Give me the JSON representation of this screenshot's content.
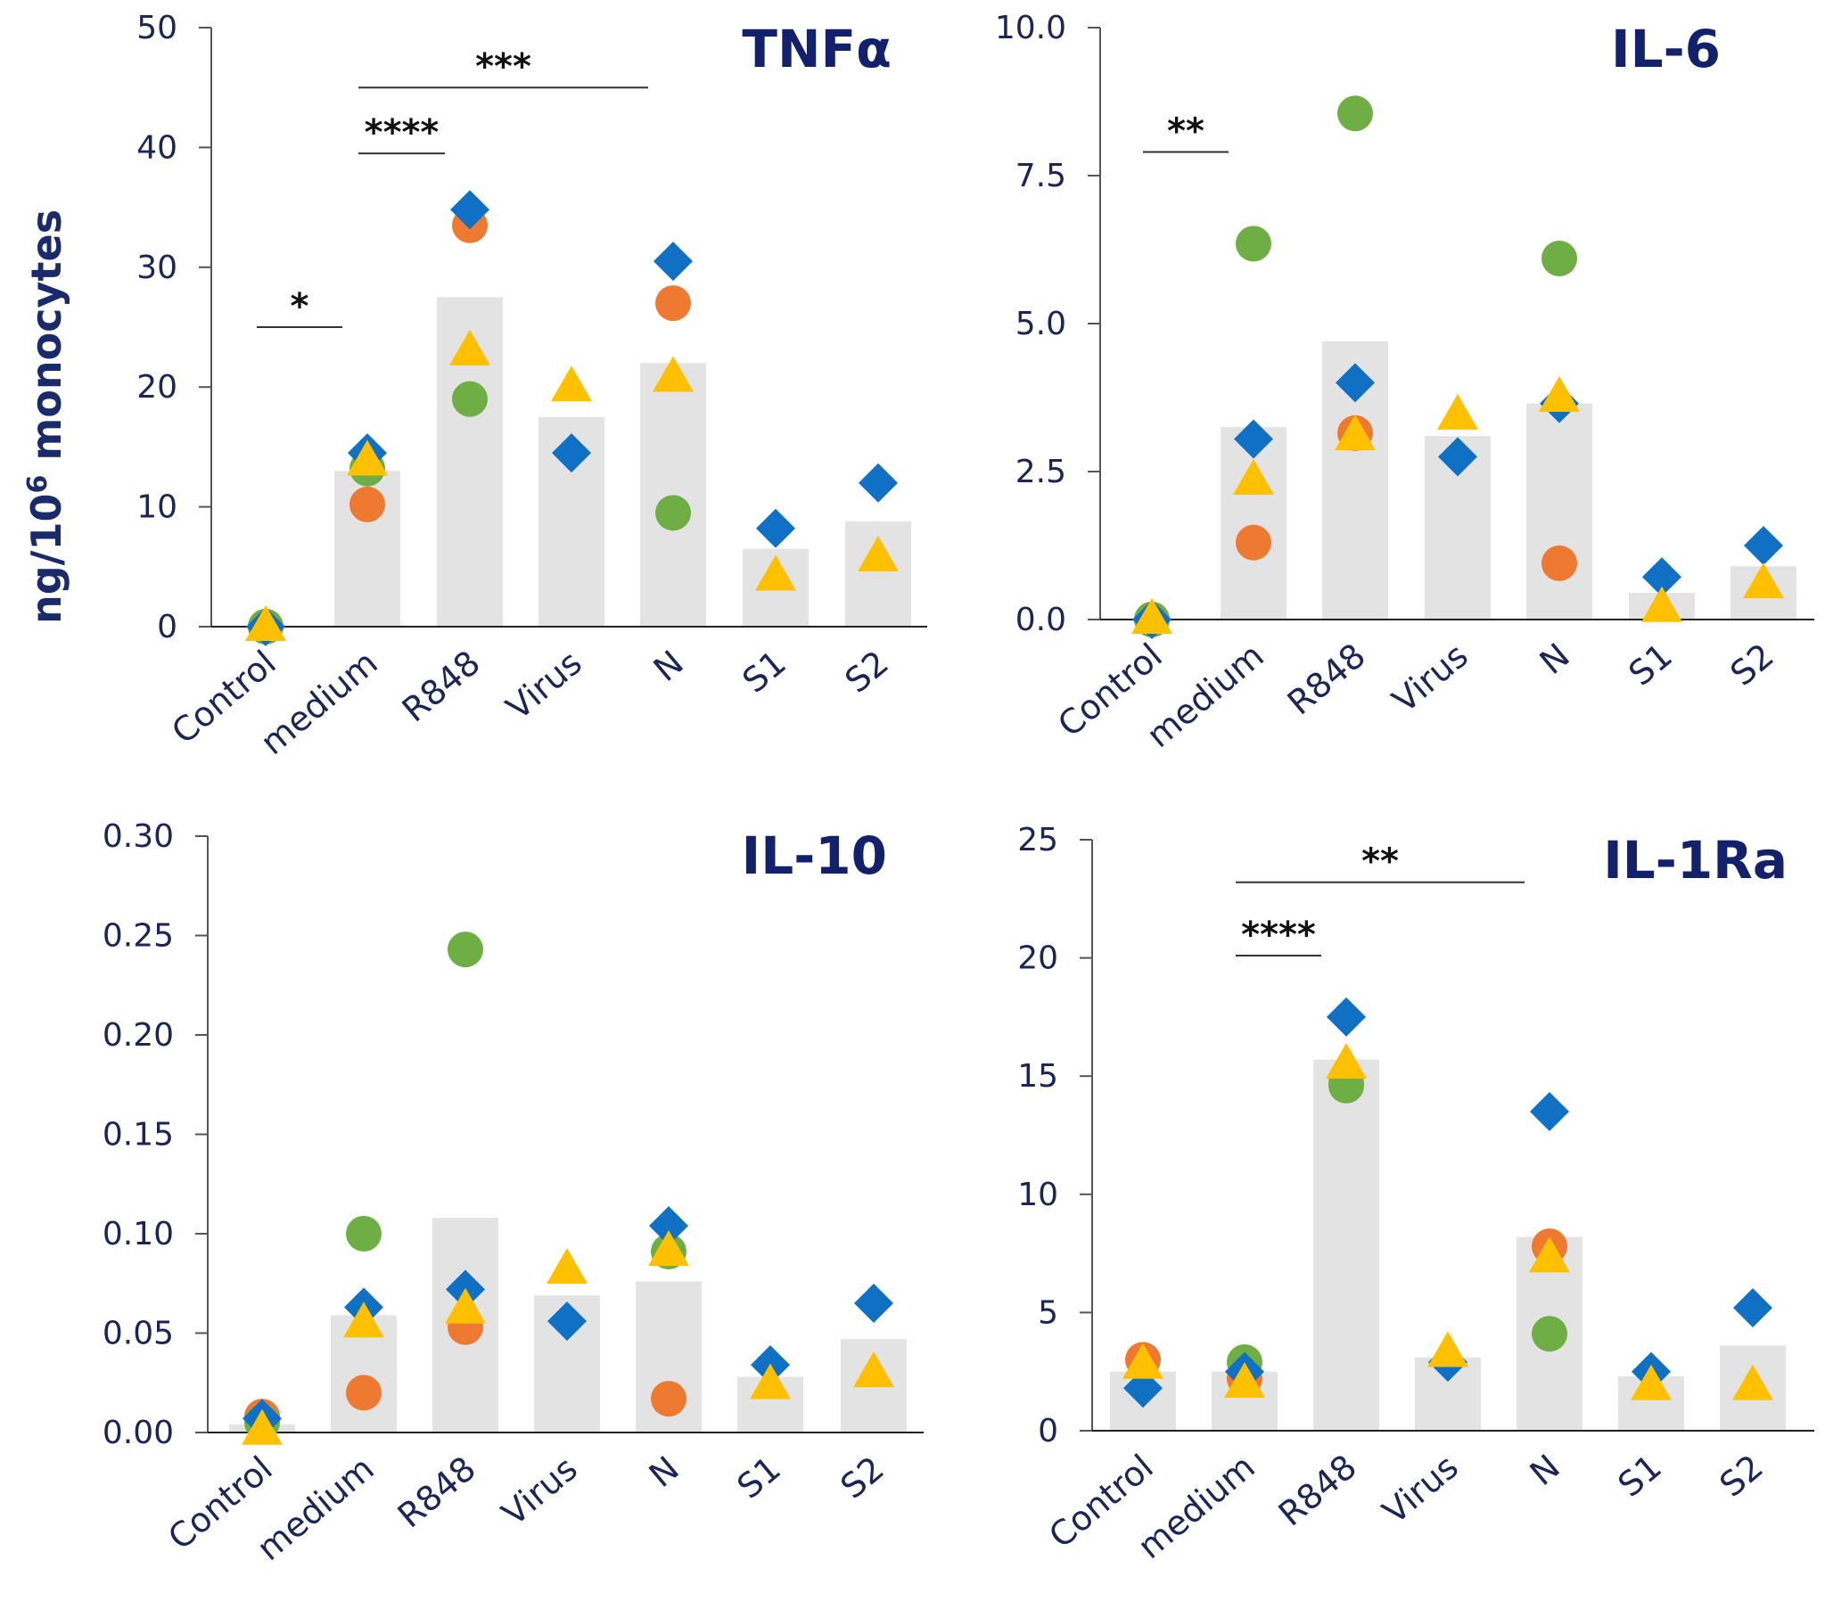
{
  "y_axis_label": "ng/10",
  "y_axis_label_sup": "6",
  "y_axis_label_suffix": " monocytes",
  "colors": {
    "bar": "#e3e3e3",
    "axis": "#555555",
    "text": "#1b2556",
    "title": "#13206b",
    "diamond": "#1070c4",
    "circle_orange": "#ee7a31",
    "circle_green": "#6fad45",
    "triangle": "#ffc000"
  },
  "chart_data": [
    {
      "type": "bar",
      "title": "TNFα",
      "categories": [
        "Control",
        "medium",
        "R848",
        "Virus",
        "N",
        "S1",
        "S2"
      ],
      "values": [
        0,
        13,
        27.5,
        17.5,
        22,
        6.5,
        8.8
      ],
      "ylim": [
        0,
        50
      ],
      "yticks": [
        "0",
        "10",
        "20",
        "30",
        "40",
        "50"
      ],
      "ytick_values": [
        0,
        10,
        20,
        30,
        40,
        50
      ],
      "points": {
        "diamond": [
          0,
          14.5,
          34.8,
          14.5,
          30.5,
          8.2,
          12
        ],
        "orange": [
          0,
          10.2,
          33.5,
          null,
          27,
          null,
          null
        ],
        "green": [
          0,
          13.2,
          19,
          null,
          9.5,
          null,
          null
        ],
        "triangle": [
          0,
          13.8,
          23,
          20,
          20.8,
          4.2,
          5.8
        ]
      },
      "significance": [
        {
          "from": 0,
          "to": 1,
          "level": 25,
          "label": "*"
        },
        {
          "from": 1,
          "to": 2,
          "level": 39.5,
          "label": "****"
        },
        {
          "from": 1,
          "to": 4,
          "level": 45,
          "label": "***"
        }
      ]
    },
    {
      "type": "bar",
      "title": "IL-6",
      "categories": [
        "Control",
        "medium",
        "R848",
        "Virus",
        "N",
        "S1",
        "S2"
      ],
      "values": [
        0,
        3.25,
        4.7,
        3.1,
        3.65,
        0.45,
        0.9
      ],
      "ylim": [
        0,
        10
      ],
      "yticks": [
        "0.0",
        "2.5",
        "5.0",
        "7.5",
        "10.0"
      ],
      "ytick_values": [
        0,
        2.5,
        5,
        7.5,
        10
      ],
      "points": {
        "diamond": [
          0,
          3.05,
          4,
          2.75,
          3.65,
          0.72,
          1.25
        ],
        "orange": [
          0,
          1.3,
          3.15,
          null,
          0.95,
          null,
          null
        ],
        "green": [
          0,
          6.35,
          8.55,
          null,
          6.1,
          null,
          null
        ],
        "triangle": [
          0,
          2.35,
          3.1,
          3.45,
          3.75,
          0.2,
          0.6
        ]
      },
      "significance": [
        {
          "from": 0,
          "to": 1,
          "level": 7.9,
          "label": "**"
        }
      ]
    },
    {
      "type": "bar",
      "title": "IL-10",
      "categories": [
        "Control",
        "medium",
        "R848",
        "Virus",
        "N",
        "S1",
        "S2"
      ],
      "values": [
        0.004,
        0.059,
        0.108,
        0.069,
        0.076,
        0.028,
        0.047
      ],
      "ylim": [
        0,
        0.3
      ],
      "yticks": [
        "0.00",
        "0.05",
        "0.10",
        "0.15",
        "0.20",
        "0.25",
        "0.30"
      ],
      "ytick_values": [
        0,
        0.05,
        0.1,
        0.15,
        0.2,
        0.25,
        0.3
      ],
      "points": {
        "diamond": [
          0.007,
          0.063,
          0.072,
          0.056,
          0.104,
          0.034,
          0.065
        ],
        "orange": [
          0.008,
          0.02,
          0.053,
          null,
          0.017,
          null,
          null
        ],
        "green": [
          0.005,
          0.1,
          0.243,
          null,
          0.091,
          null,
          null
        ],
        "triangle": [
          0.001,
          0.055,
          0.062,
          0.082,
          0.091,
          0.024,
          0.03
        ]
      },
      "significance": []
    },
    {
      "type": "bar",
      "title": "IL-1Ra",
      "categories": [
        "Control",
        "medium",
        "R848",
        "Virus",
        "N",
        "S1",
        "S2"
      ],
      "values": [
        2.5,
        2.5,
        15.7,
        3.1,
        8.2,
        2.3,
        3.6
      ],
      "ylim": [
        0,
        25
      ],
      "yticks": [
        "0",
        "5",
        "10",
        "15",
        "20",
        "25"
      ],
      "ytick_values": [
        0,
        5,
        10,
        15,
        20,
        25
      ],
      "points": {
        "diamond": [
          1.8,
          2.5,
          17.5,
          2.9,
          13.5,
          2.5,
          5.2
        ],
        "orange": [
          3.0,
          2.2,
          14.7,
          null,
          7.8,
          null,
          null
        ],
        "green": [
          null,
          2.9,
          14.6,
          null,
          4.1,
          null,
          null
        ],
        "triangle": [
          2.8,
          2.0,
          15.5,
          3.3,
          7.3,
          1.9,
          1.9
        ]
      },
      "significance": [
        {
          "from": 1,
          "to": 2,
          "level": 20.1,
          "label": "****"
        },
        {
          "from": 1,
          "to": 4,
          "level": 23.2,
          "label": "**"
        }
      ]
    }
  ]
}
